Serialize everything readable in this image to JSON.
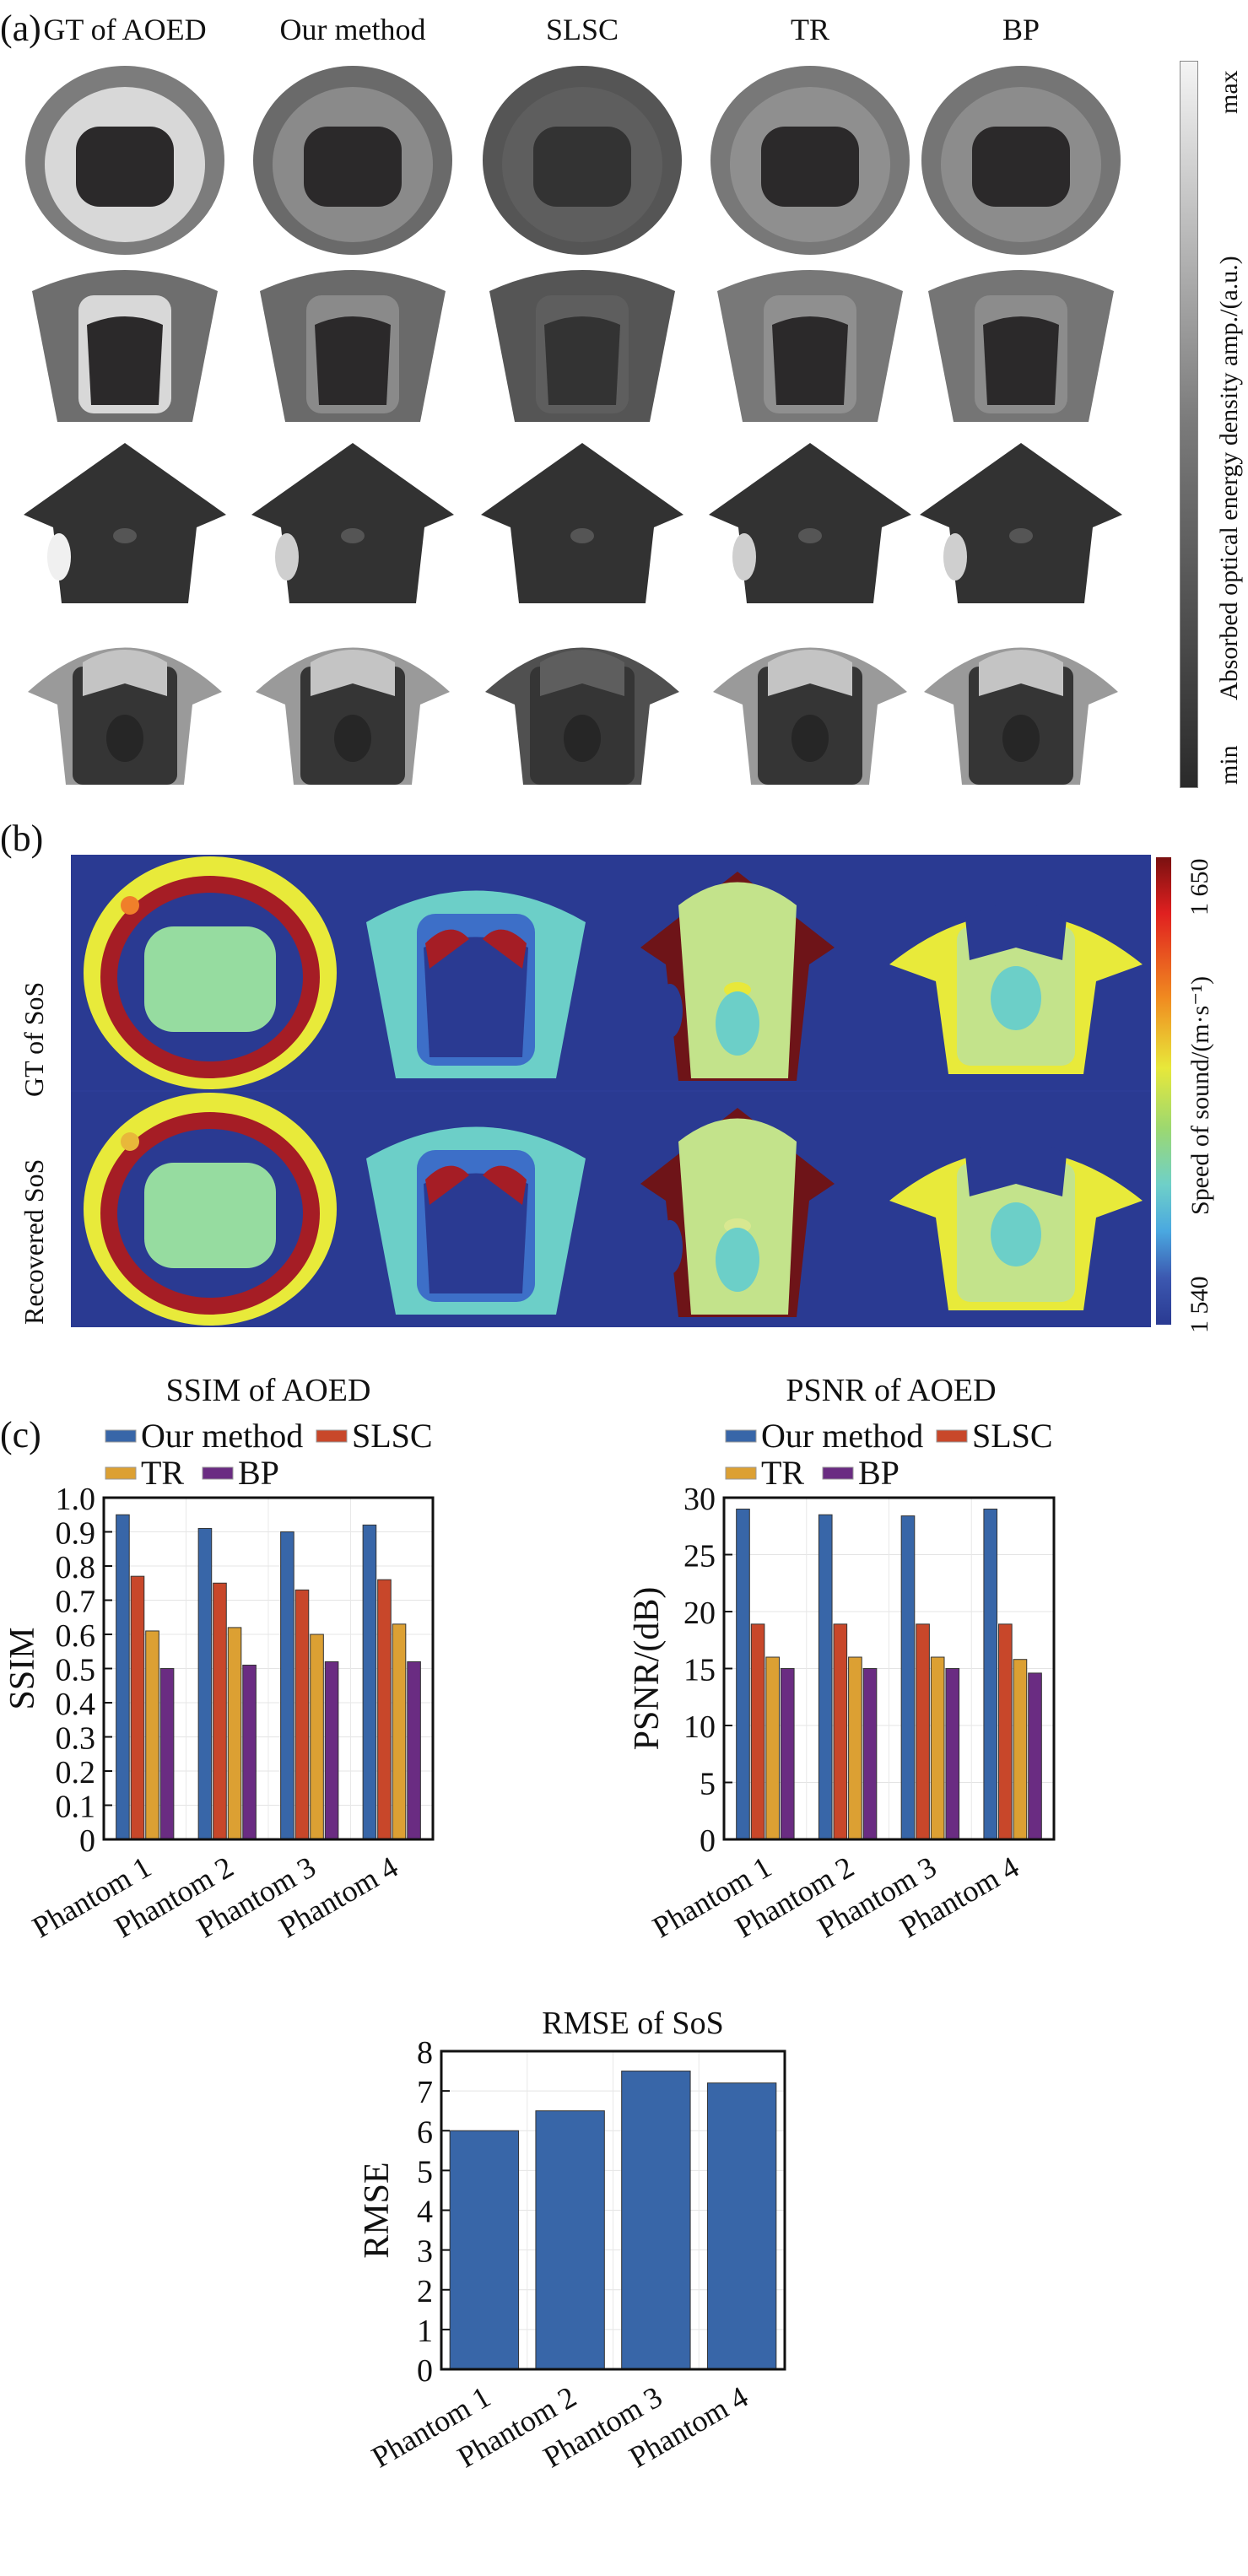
{
  "figure": {
    "panel_a": {
      "label": "(a)",
      "column_titles": [
        "GT of AOED",
        "Our method",
        "SLSC",
        "TR",
        "BP"
      ],
      "rows": 4,
      "colorbar": {
        "label": "Absorbed optical energy density amp./(a.u.)",
        "min_label": "min",
        "max_label": "max",
        "colormap": "gray"
      },
      "phantom_gray_levels": {
        "background": "#ffffff",
        "dark": "#2b292a",
        "mid": "#6b6b6b",
        "light": "#d8d8d8"
      }
    },
    "panel_b": {
      "label": "(b)",
      "row_labels": [
        "GT of SoS",
        "Recovered SoS"
      ],
      "colorbar": {
        "label": "Speed of sound/(m·s⁻¹)",
        "min_label": "1 540",
        "max_label": "1 650",
        "min": 1540,
        "max": 1650,
        "colormap": "jet"
      },
      "colors": {
        "background": "#2a3a92",
        "yellow": "#e8ea3a",
        "red": "#a51d25",
        "green": "#96dca0",
        "cyan": "#6ccfc8",
        "blue": "#3d6fc8",
        "lightgreen": "#c3e38b",
        "orange": "#f07f2a"
      }
    },
    "panel_c": {
      "label": "(c)"
    }
  },
  "chart_data": [
    {
      "type": "bar",
      "title": "SSIM of AOED",
      "xlabel": "",
      "ylabel": "SSIM",
      "categories": [
        "Phantom 1",
        "Phantom 2",
        "Phantom 3",
        "Phantom 4"
      ],
      "ylim": [
        0,
        1.0
      ],
      "yticks": [
        0,
        0.1,
        0.2,
        0.3,
        0.4,
        0.5,
        0.6,
        0.7,
        0.8,
        0.9,
        1.0
      ],
      "ytick_labels": [
        "0",
        "0.1",
        "0.2",
        "0.3",
        "0.4",
        "0.5",
        "0.6",
        "0.7",
        "0.8",
        "0.9",
        "1.0"
      ],
      "grid": true,
      "legend": "top",
      "series": [
        {
          "name": "Our method",
          "color": "#3866a8",
          "values": [
            0.95,
            0.91,
            0.9,
            0.92
          ]
        },
        {
          "name": "SLSC",
          "color": "#c8472a",
          "values": [
            0.77,
            0.75,
            0.73,
            0.76
          ]
        },
        {
          "name": "TR",
          "color": "#dca033",
          "values": [
            0.61,
            0.62,
            0.6,
            0.63
          ]
        },
        {
          "name": "BP",
          "color": "#6a2c82",
          "values": [
            0.5,
            0.51,
            0.52,
            0.52
          ]
        }
      ]
    },
    {
      "type": "bar",
      "title": "PSNR of AOED",
      "xlabel": "",
      "ylabel": "PSNR/(dB)",
      "categories": [
        "Phantom 1",
        "Phantom 2",
        "Phantom 3",
        "Phantom 4"
      ],
      "ylim": [
        0,
        30
      ],
      "yticks": [
        0,
        5,
        10,
        15,
        20,
        25,
        30
      ],
      "ytick_labels": [
        "0",
        "5",
        "10",
        "15",
        "20",
        "25",
        "30"
      ],
      "grid": true,
      "legend": "top",
      "series": [
        {
          "name": "Our method",
          "color": "#3866a8",
          "values": [
            29.0,
            28.5,
            28.4,
            29.0
          ]
        },
        {
          "name": "SLSC",
          "color": "#c8472a",
          "values": [
            18.9,
            18.9,
            18.9,
            18.9
          ]
        },
        {
          "name": "TR",
          "color": "#dca033",
          "values": [
            16.0,
            16.0,
            16.0,
            15.8
          ]
        },
        {
          "name": "BP",
          "color": "#6a2c82",
          "values": [
            15.0,
            15.0,
            15.0,
            14.6
          ]
        }
      ]
    },
    {
      "type": "bar",
      "title": "RMSE of SoS",
      "xlabel": "",
      "ylabel": "RMSE",
      "categories": [
        "Phantom 1",
        "Phantom 2",
        "Phantom 3",
        "Phantom 4"
      ],
      "ylim": [
        0,
        8
      ],
      "yticks": [
        0,
        1,
        2,
        3,
        4,
        5,
        6,
        7,
        8
      ],
      "ytick_labels": [
        "0",
        "1",
        "2",
        "3",
        "4",
        "5",
        "6",
        "7",
        "8"
      ],
      "grid": true,
      "legend": "none",
      "series": [
        {
          "name": "RMSE",
          "color": "#3866a8",
          "values": [
            6.0,
            6.5,
            7.5,
            7.2
          ]
        }
      ]
    }
  ]
}
